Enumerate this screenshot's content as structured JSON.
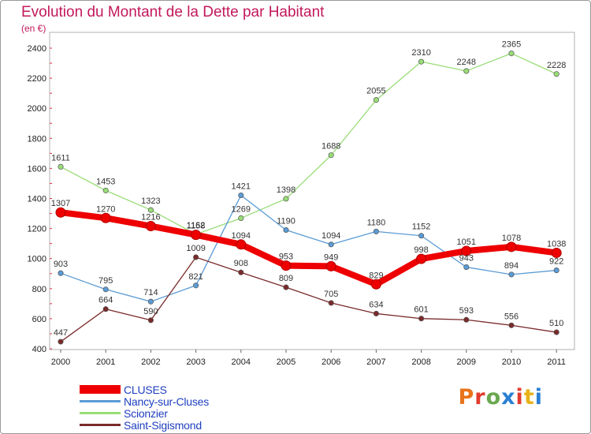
{
  "header": {
    "title": "Evolution du Montant de la Dette par Habitant",
    "subtitle": "(en €)"
  },
  "brand": {
    "text": "Proxiti",
    "colors": [
      "#e8731a",
      "#e23b2e",
      "#6aa84f",
      "#2a7fd4",
      "#e23b2e",
      "#e8b31a",
      "#2a7fd4"
    ]
  },
  "chart_data": {
    "type": "line",
    "title": "Evolution du Montant de la Dette par Habitant",
    "subtitle": "(en €)",
    "xlabel": "",
    "ylabel": "",
    "x": [
      "2000",
      "2001",
      "2002",
      "2003",
      "2004",
      "2005",
      "2006",
      "2007",
      "2008",
      "2009",
      "2010",
      "2011"
    ],
    "ylim": [
      400,
      2400
    ],
    "yticks": [
      400,
      600,
      800,
      1000,
      1200,
      1400,
      1600,
      1800,
      2000,
      2200,
      2400
    ],
    "grid": false,
    "legend_position": "bottom-left",
    "series": [
      {
        "name": "CLUSES",
        "color": "#ee0000",
        "values": [
          1307,
          1270,
          1216,
          1158,
          1094,
          953,
          949,
          829,
          998,
          1051,
          1078,
          1038
        ]
      },
      {
        "name": "Nancy-sur-Cluses",
        "color": "#5b9bd5",
        "values": [
          903,
          795,
          714,
          821,
          1421,
          1190,
          1094,
          1180,
          1152,
          943,
          894,
          922
        ]
      },
      {
        "name": "Scionzier",
        "color": "#99dd77",
        "values": [
          1611,
          1453,
          1323,
          1162,
          1269,
          1398,
          1688,
          2055,
          2310,
          2248,
          2365,
          2228
        ]
      },
      {
        "name": "Saint-Sigismond",
        "color": "#7a2a2a",
        "values": [
          447,
          664,
          590,
          1009,
          908,
          809,
          705,
          634,
          601,
          593,
          556,
          510
        ]
      }
    ]
  }
}
